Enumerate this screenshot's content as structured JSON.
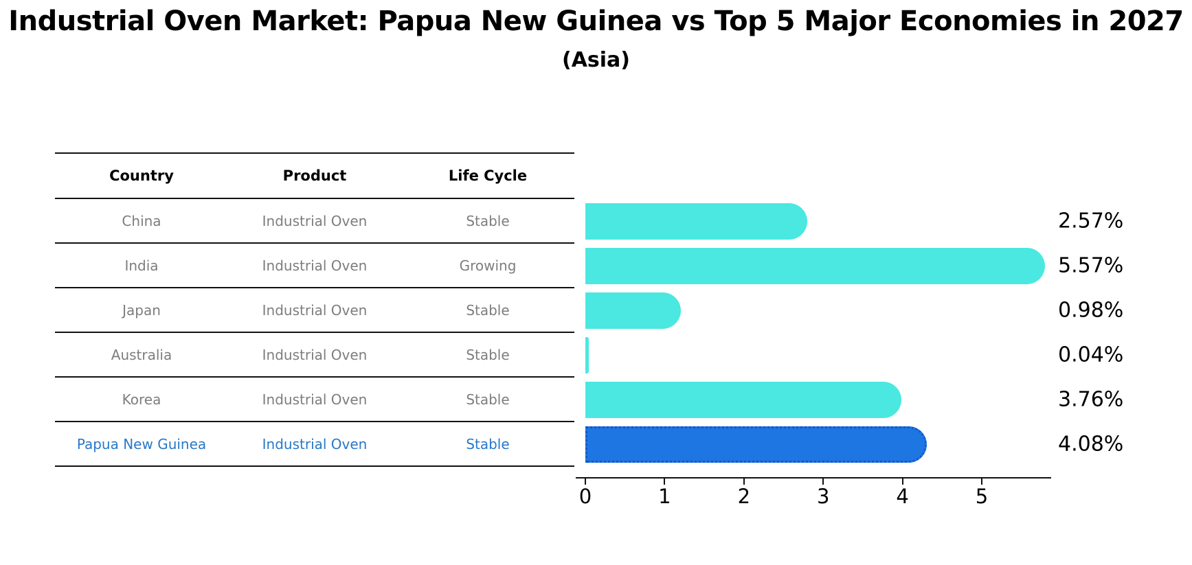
{
  "title": "Industrial Oven Market: Papua New Guinea vs Top 5 Major Economies in 2027",
  "subtitle": "(Asia)",
  "table": {
    "columns": [
      "Country",
      "Product",
      "Life Cycle"
    ],
    "rows": [
      {
        "country": "China",
        "product": "Industrial Oven",
        "life_cycle": "Stable",
        "highlighted": false
      },
      {
        "country": "India",
        "product": "Industrial Oven",
        "life_cycle": "Growing",
        "highlighted": false
      },
      {
        "country": "Japan",
        "product": "Industrial Oven",
        "life_cycle": "Stable",
        "highlighted": false
      },
      {
        "country": "Australia",
        "product": "Industrial Oven",
        "life_cycle": "Stable",
        "highlighted": false
      },
      {
        "country": "Korea",
        "product": "Industrial Oven",
        "life_cycle": "Stable",
        "highlighted": false
      },
      {
        "country": "Papua New Guinea",
        "product": "Industrial Oven",
        "life_cycle": "Stable",
        "highlighted": true
      }
    ]
  },
  "chart_data": {
    "type": "bar",
    "orientation": "horizontal",
    "title": "Industrial Oven Market: Papua New Guinea vs Top 5 Major Economies in 2027",
    "subtitle": "(Asia)",
    "categories": [
      "China",
      "India",
      "Japan",
      "Australia",
      "Korea",
      "Papua New Guinea"
    ],
    "values": [
      2.57,
      5.57,
      0.98,
      0.04,
      3.76,
      4.08
    ],
    "value_labels": [
      "2.57%",
      "5.57%",
      "0.98%",
      "0.04%",
      "3.76%",
      "4.08%"
    ],
    "highlight_index": 5,
    "x_ticks": [
      "0",
      "1",
      "2",
      "3",
      "4",
      "5"
    ],
    "xlim": [
      0,
      5.86
    ],
    "grid": false,
    "legend": "none",
    "bar_color": "#4AE8E0",
    "highlight_bar_color": "#1D76E2",
    "highlight_edge_color": "#1358C8",
    "highlight_text_color": "#2878C8",
    "table_text_color": "#7d7d7d"
  }
}
